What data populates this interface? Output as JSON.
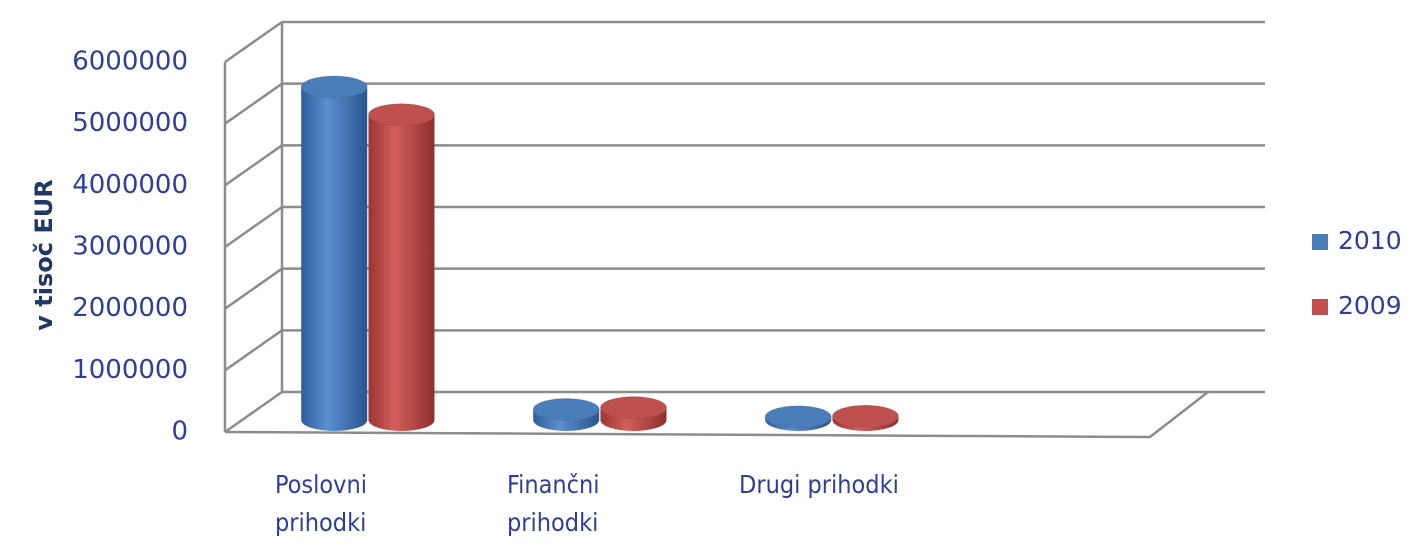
{
  "chart_data": {
    "type": "bar3d",
    "y_label": "v tisoč EUR",
    "categories": [
      "Poslovni prihodki",
      "Finančni prihodki",
      "Drugi prihodki"
    ],
    "series": [
      {
        "name": "2010",
        "color": "#4a7ebb",
        "values": [
          5400000,
          170000,
          50000
        ]
      },
      {
        "name": "2009",
        "color": "#c0504d",
        "values": [
          4950000,
          200000,
          60000
        ]
      }
    ],
    "ylim": [
      0,
      6000000
    ],
    "yticks": [
      0,
      1000000,
      2000000,
      3000000,
      4000000,
      5000000,
      6000000
    ],
    "grid": true,
    "legend": "right"
  }
}
